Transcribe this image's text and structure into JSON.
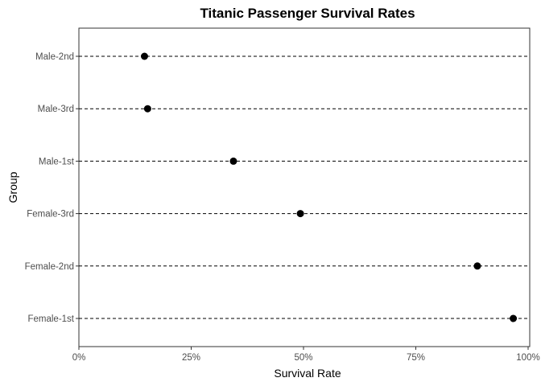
{
  "chart_data": {
    "type": "scatter",
    "title": "Titanic Passenger Survival Rates",
    "xlabel": "Survival Rate",
    "ylabel": "Group",
    "xlim": [
      0,
      100
    ],
    "x_ticks": [
      "0%",
      "25%",
      "50%",
      "75%",
      "100%"
    ],
    "x_tick_values": [
      0,
      25,
      50,
      75,
      100
    ],
    "categories": [
      "Male-2nd",
      "Male-3rd",
      "Male-1st",
      "Female-3rd",
      "Female-2nd",
      "Female-1st"
    ],
    "values": [
      14.6,
      15.3,
      34.4,
      49.3,
      88.7,
      96.7
    ],
    "grid": false,
    "guide_lines": "dashed",
    "point_color": "#000000"
  }
}
